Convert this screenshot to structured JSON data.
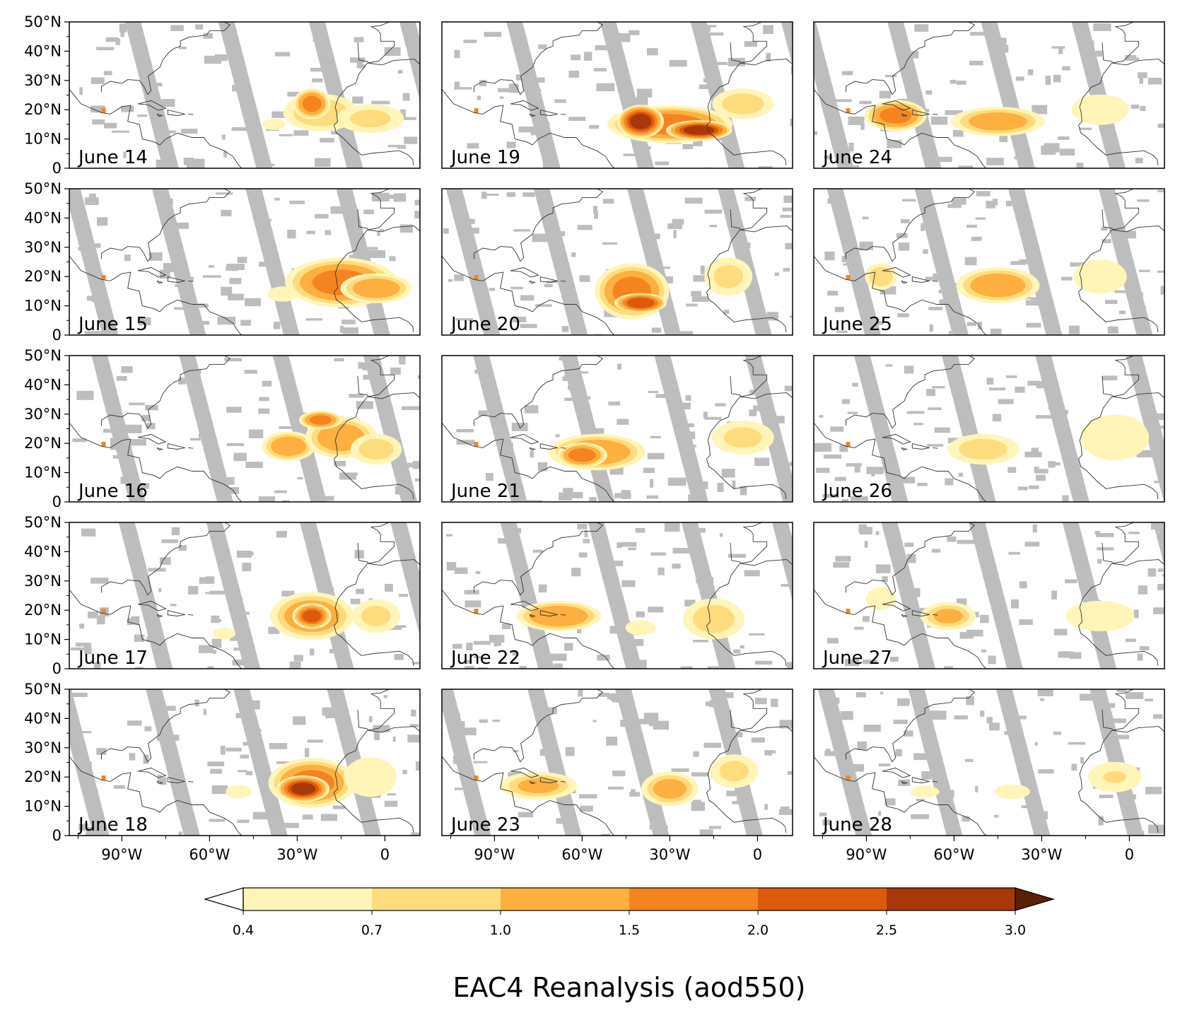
{
  "figure": {
    "title": "EAC4 Reanalysis (aod550)",
    "colors": {
      "nodata": "#bdbdbd",
      "coast": "#333333",
      "frame": "#000000"
    }
  },
  "panels": [
    {
      "label": "June 14",
      "row": 0,
      "col": 0,
      "blobs": [
        {
          "lon": -22,
          "lat": 19,
          "rx": 14,
          "ry": 7,
          "level": 0.9
        },
        {
          "lon": -5,
          "lat": 17,
          "rx": 14,
          "ry": 6,
          "level": 0.7
        },
        {
          "lon": -25,
          "lat": 22,
          "rx": 6,
          "ry": 5,
          "level": 1.6
        },
        {
          "lon": -38,
          "lat": 15,
          "rx": 6,
          "ry": 3,
          "level": 0.5
        }
      ]
    },
    {
      "label": "June 19",
      "row": 0,
      "col": 1,
      "blobs": [
        {
          "lon": -30,
          "lat": 15,
          "rx": 20,
          "ry": 6,
          "level": 1.7
        },
        {
          "lon": -40,
          "lat": 16,
          "rx": 7,
          "ry": 5,
          "level": 2.6
        },
        {
          "lon": -20,
          "lat": 13,
          "rx": 10,
          "ry": 3,
          "level": 2.6
        },
        {
          "lon": -5,
          "lat": 22,
          "rx": 12,
          "ry": 6,
          "level": 0.8
        }
      ]
    },
    {
      "label": "June 24",
      "row": 0,
      "col": 2,
      "blobs": [
        {
          "lon": -80,
          "lat": 18,
          "rx": 10,
          "ry": 5,
          "level": 1.6
        },
        {
          "lon": -45,
          "lat": 16,
          "rx": 16,
          "ry": 5,
          "level": 1.2
        },
        {
          "lon": -10,
          "lat": 20,
          "rx": 15,
          "ry": 8,
          "level": 0.5
        }
      ]
    },
    {
      "label": "June 15",
      "row": 1,
      "col": 0,
      "blobs": [
        {
          "lon": -15,
          "lat": 18,
          "rx": 18,
          "ry": 8,
          "level": 1.6
        },
        {
          "lon": -3,
          "lat": 16,
          "rx": 12,
          "ry": 5,
          "level": 1.3
        },
        {
          "lon": -35,
          "lat": 14,
          "rx": 8,
          "ry": 4,
          "level": 0.5
        }
      ]
    },
    {
      "label": "June 20",
      "row": 1,
      "col": 1,
      "blobs": [
        {
          "lon": -43,
          "lat": 15,
          "rx": 12,
          "ry": 9,
          "level": 1.6
        },
        {
          "lon": -40,
          "lat": 11,
          "rx": 8,
          "ry": 3,
          "level": 2.3
        },
        {
          "lon": -10,
          "lat": 20,
          "rx": 10,
          "ry": 8,
          "level": 0.7
        }
      ]
    },
    {
      "label": "June 25",
      "row": 1,
      "col": 2,
      "blobs": [
        {
          "lon": -45,
          "lat": 17,
          "rx": 14,
          "ry": 6,
          "level": 1.3
        },
        {
          "lon": -85,
          "lat": 20,
          "rx": 6,
          "ry": 5,
          "level": 0.9
        },
        {
          "lon": -10,
          "lat": 20,
          "rx": 14,
          "ry": 9,
          "level": 0.5
        }
      ]
    },
    {
      "label": "June 16",
      "row": 2,
      "col": 0,
      "blobs": [
        {
          "lon": -33,
          "lat": 19,
          "rx": 9,
          "ry": 5,
          "level": 1.3
        },
        {
          "lon": -15,
          "lat": 22,
          "rx": 12,
          "ry": 7,
          "level": 1.3
        },
        {
          "lon": -3,
          "lat": 18,
          "rx": 10,
          "ry": 6,
          "level": 0.8
        },
        {
          "lon": -22,
          "lat": 28,
          "rx": 7,
          "ry": 3,
          "level": 1.6
        }
      ]
    },
    {
      "label": "June 21",
      "row": 2,
      "col": 1,
      "blobs": [
        {
          "lon": -55,
          "lat": 17,
          "rx": 16,
          "ry": 6,
          "level": 1.4
        },
        {
          "lon": -60,
          "lat": 16,
          "rx": 8,
          "ry": 4,
          "level": 1.7
        },
        {
          "lon": -5,
          "lat": 22,
          "rx": 13,
          "ry": 7,
          "level": 0.7
        }
      ]
    },
    {
      "label": "June 26",
      "row": 2,
      "col": 2,
      "blobs": [
        {
          "lon": -50,
          "lat": 18,
          "rx": 14,
          "ry": 6,
          "level": 0.8
        },
        {
          "lon": -5,
          "lat": 22,
          "rx": 18,
          "ry": 12,
          "level": 0.5
        }
      ]
    },
    {
      "label": "June 17",
      "row": 3,
      "col": 0,
      "blobs": [
        {
          "lon": -25,
          "lat": 18,
          "rx": 14,
          "ry": 8,
          "level": 1.3
        },
        {
          "lon": -25,
          "lat": 18,
          "rx": 6,
          "ry": 4,
          "level": 2.1
        },
        {
          "lon": -3,
          "lat": 18,
          "rx": 10,
          "ry": 7,
          "level": 0.7
        },
        {
          "lon": -55,
          "lat": 12,
          "rx": 6,
          "ry": 3,
          "level": 0.5
        }
      ]
    },
    {
      "label": "June 22",
      "row": 3,
      "col": 1,
      "blobs": [
        {
          "lon": -68,
          "lat": 18,
          "rx": 14,
          "ry": 5,
          "level": 1.4
        },
        {
          "lon": -15,
          "lat": 17,
          "rx": 12,
          "ry": 8,
          "level": 0.8
        },
        {
          "lon": -40,
          "lat": 14,
          "rx": 8,
          "ry": 4,
          "level": 0.5
        }
      ]
    },
    {
      "label": "June 27",
      "row": 3,
      "col": 2,
      "blobs": [
        {
          "lon": -62,
          "lat": 18,
          "rx": 10,
          "ry": 5,
          "level": 1.0
        },
        {
          "lon": -10,
          "lat": 18,
          "rx": 18,
          "ry": 8,
          "level": 0.5
        },
        {
          "lon": -85,
          "lat": 24,
          "rx": 8,
          "ry": 6,
          "level": 0.5
        }
      ]
    },
    {
      "label": "June 18",
      "row": 4,
      "col": 0,
      "blobs": [
        {
          "lon": -25,
          "lat": 18,
          "rx": 14,
          "ry": 8,
          "level": 1.6
        },
        {
          "lon": -28,
          "lat": 16,
          "rx": 8,
          "ry": 4,
          "level": 2.6
        },
        {
          "lon": -5,
          "lat": 20,
          "rx": 12,
          "ry": 9,
          "level": 0.6
        },
        {
          "lon": -50,
          "lat": 15,
          "rx": 6,
          "ry": 3,
          "level": 0.6
        }
      ]
    },
    {
      "label": "June 23",
      "row": 4,
      "col": 1,
      "blobs": [
        {
          "lon": -75,
          "lat": 17,
          "rx": 14,
          "ry": 5,
          "level": 1.0
        },
        {
          "lon": -30,
          "lat": 16,
          "rx": 10,
          "ry": 6,
          "level": 1.1
        },
        {
          "lon": -8,
          "lat": 22,
          "rx": 10,
          "ry": 7,
          "level": 0.7
        }
      ]
    },
    {
      "label": "June 28",
      "row": 4,
      "col": 2,
      "blobs": [
        {
          "lon": -5,
          "lat": 20,
          "rx": 14,
          "ry": 8,
          "level": 0.5
        },
        {
          "lon": -5,
          "lat": 20,
          "rx": 6,
          "ry": 3,
          "level": 0.9
        },
        {
          "lon": -40,
          "lat": 15,
          "rx": 12,
          "ry": 5,
          "level": 0.4
        },
        {
          "lon": -70,
          "lat": 15,
          "rx": 10,
          "ry": 4,
          "level": 0.4
        }
      ]
    }
  ],
  "axes": {
    "lat_ticks": [
      "50°N",
      "40°N",
      "30°N",
      "20°N",
      "10°N",
      "0"
    ],
    "lon_ticks": [
      "90°W",
      "60°W",
      "30°W",
      "0"
    ],
    "lat_range": [
      0,
      50
    ],
    "lon_range": [
      -108,
      12
    ]
  },
  "colorbar": {
    "levels": [
      "0.4",
      "0.7",
      "1.0",
      "1.5",
      "2.0",
      "2.5",
      "3.0"
    ],
    "colors": [
      "#fff5b8",
      "#fedc7e",
      "#fdb040",
      "#f58320",
      "#dd5a0a",
      "#a8380a",
      "#6f2708"
    ],
    "under_color": "#ffffff",
    "over_color": "#5a2006"
  }
}
